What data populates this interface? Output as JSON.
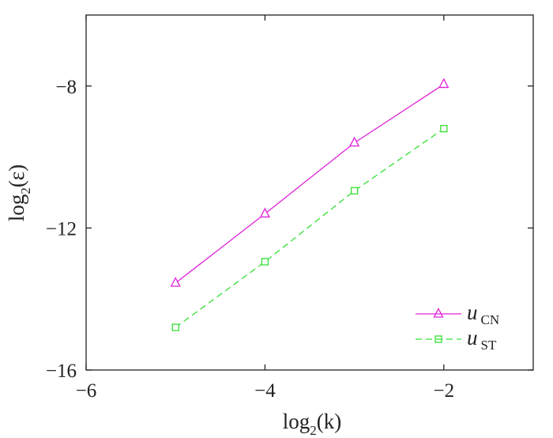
{
  "chart_data": {
    "type": "line",
    "xlabel": {
      "base": "log",
      "sub": "2",
      "arg": "(k)"
    },
    "ylabel": {
      "base": "log",
      "sub": "2",
      "arg": "(ε)"
    },
    "xlim": [
      -6,
      -1
    ],
    "ylim": [
      -16,
      -6
    ],
    "xticks": [
      -6,
      -4,
      -2
    ],
    "yticks": [
      -16,
      -12,
      -8
    ],
    "xtick_labels": [
      "−6",
      "−4",
      "−2"
    ],
    "ytick_labels": [
      "−16",
      "−12",
      "−8"
    ],
    "grid": false,
    "legend_position": "lower-right",
    "x": [
      -5,
      -4,
      -3,
      -2
    ],
    "series": [
      {
        "name": "u_CN",
        "label_main": "u",
        "label_sub": "CN",
        "values": [
          -13.55,
          -11.6,
          -9.6,
          -7.95
        ],
        "color": "#e020d8",
        "line_style": "solid",
        "marker": "triangle-icon"
      },
      {
        "name": "u_ST",
        "label_main": "u",
        "label_sub": "ST",
        "values": [
          -14.8,
          -12.95,
          -10.95,
          -9.2
        ],
        "color": "#34e034",
        "line_style": "dashed",
        "marker": "square-icon"
      }
    ]
  }
}
